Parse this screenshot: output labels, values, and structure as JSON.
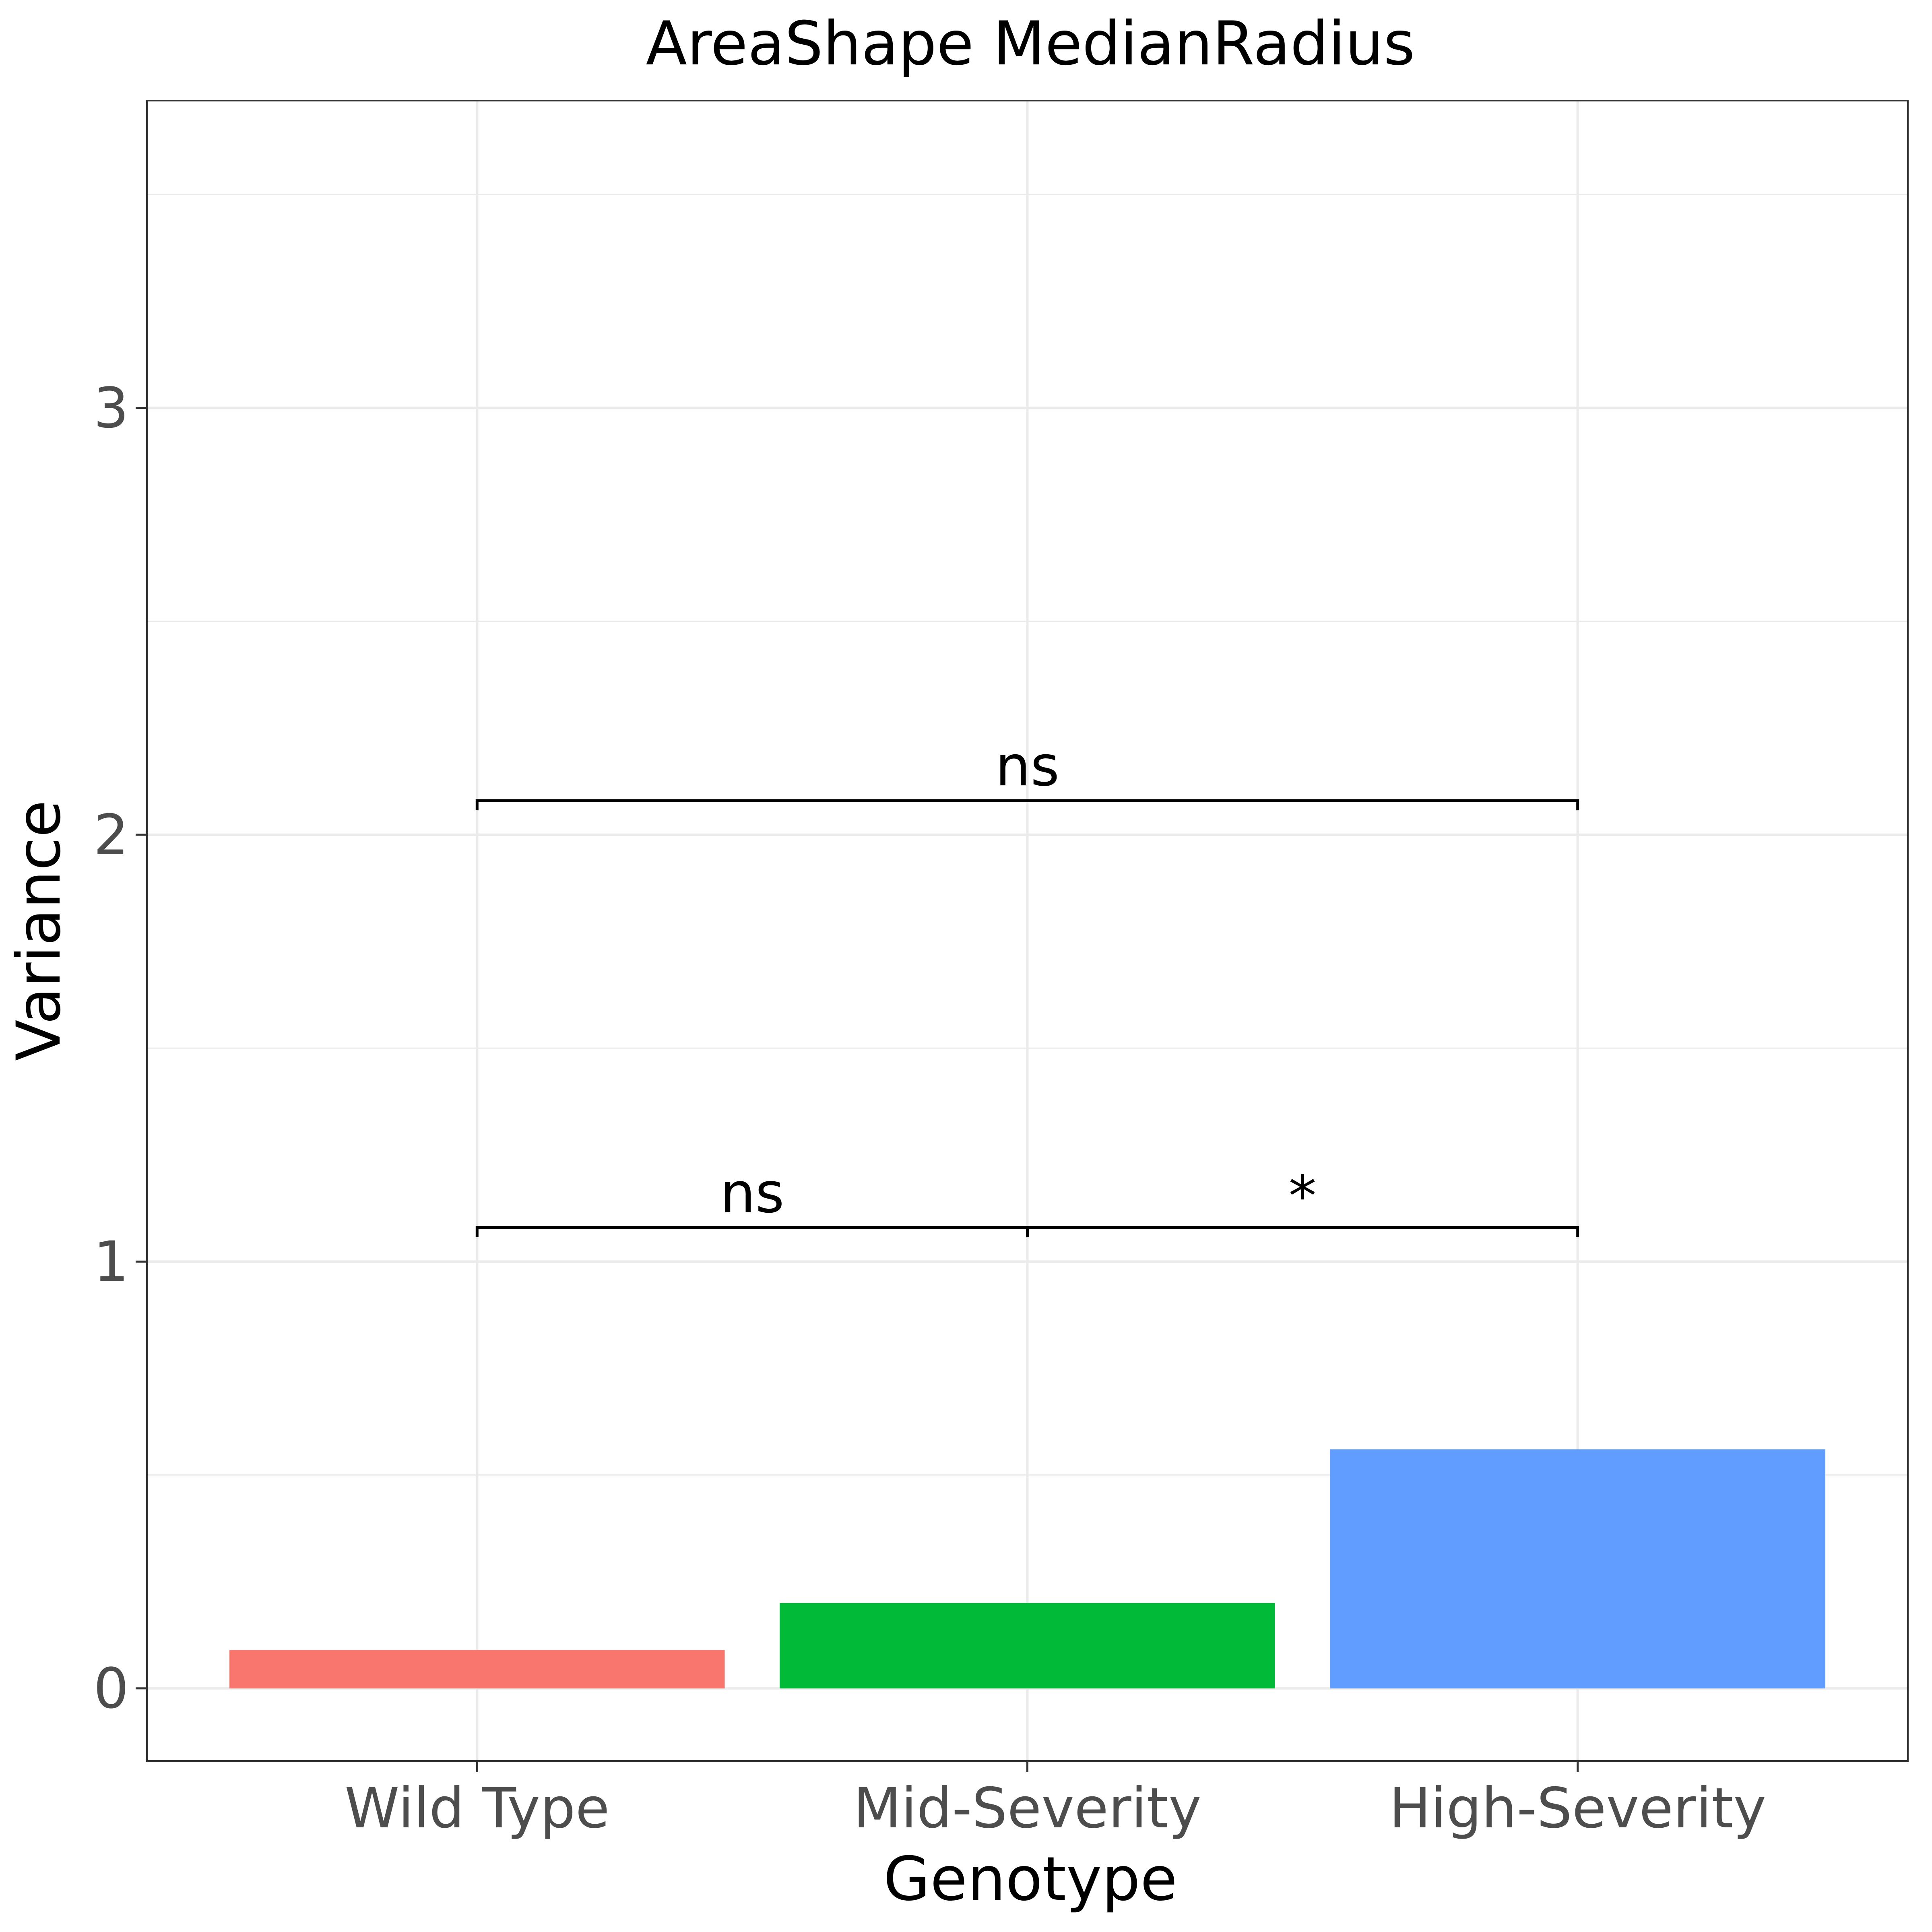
{
  "chart_data": {
    "type": "bar",
    "title": "AreaShape MedianRadius",
    "xlabel": "Genotype",
    "ylabel": "Variance",
    "categories": [
      "Wild Type",
      "Mid-Severity",
      "High-Severity"
    ],
    "values": [
      0.09,
      0.2,
      0.56
    ],
    "colors": [
      "#F8766D",
      "#00BA38",
      "#619CFF"
    ],
    "ylim": [
      -0.17,
      3.72
    ],
    "yticks": [
      0,
      1,
      2,
      3
    ],
    "ytick_labels": [
      "0",
      "1",
      "2",
      "3"
    ],
    "grid": true,
    "legend": "none",
    "significance": [
      {
        "from": 0,
        "to": 2,
        "y": 2.08,
        "label": "ns"
      },
      {
        "from": 0,
        "to": 1,
        "y": 1.08,
        "label": "ns"
      },
      {
        "from": 1,
        "to": 2,
        "y": 1.08,
        "label": "*"
      }
    ]
  }
}
